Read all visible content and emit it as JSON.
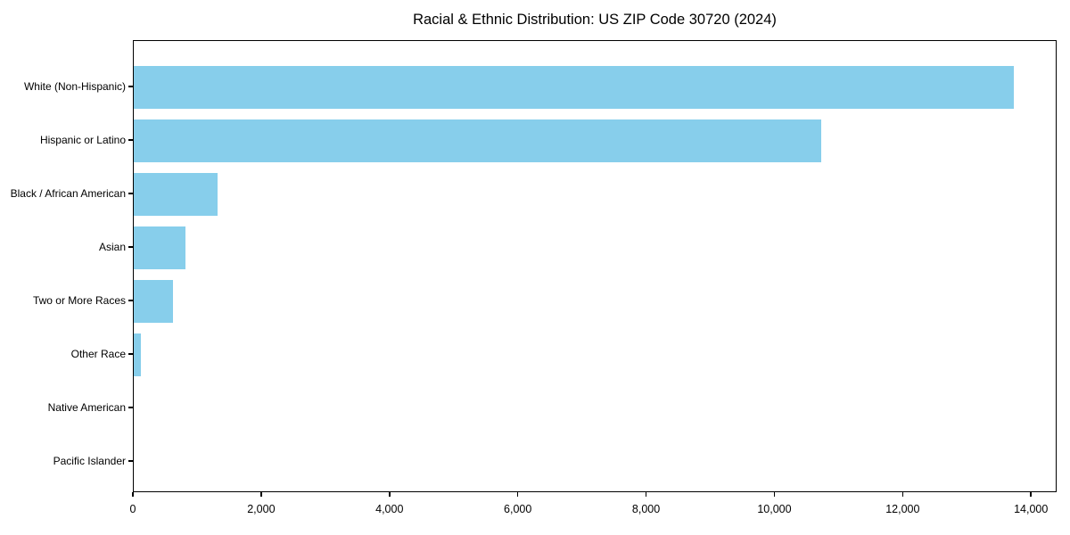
{
  "chart_data": {
    "type": "bar",
    "orientation": "horizontal",
    "title": "Racial & Ethnic Distribution: US ZIP Code 30720 (2024)",
    "categories": [
      "White (Non-Hispanic)",
      "Hispanic or Latino",
      "Black / African American",
      "Asian",
      "Two or More Races",
      "Other Race",
      "Native American",
      "Pacific Islander"
    ],
    "values": [
      13720,
      10710,
      1310,
      810,
      610,
      110,
      0,
      0
    ],
    "xlabel": "",
    "ylabel": "",
    "xlim": [
      0,
      14400
    ],
    "x_ticks": [
      {
        "value": 0,
        "label": "0"
      },
      {
        "value": 2000,
        "label": "2,000"
      },
      {
        "value": 4000,
        "label": "4,000"
      },
      {
        "value": 6000,
        "label": "6,000"
      },
      {
        "value": 8000,
        "label": "8,000"
      },
      {
        "value": 10000,
        "label": "10,000"
      },
      {
        "value": 12000,
        "label": "12,000"
      },
      {
        "value": 14000,
        "label": "14,000"
      }
    ],
    "bar_color": "#87CEEB",
    "grid": false,
    "legend_position": "none"
  }
}
